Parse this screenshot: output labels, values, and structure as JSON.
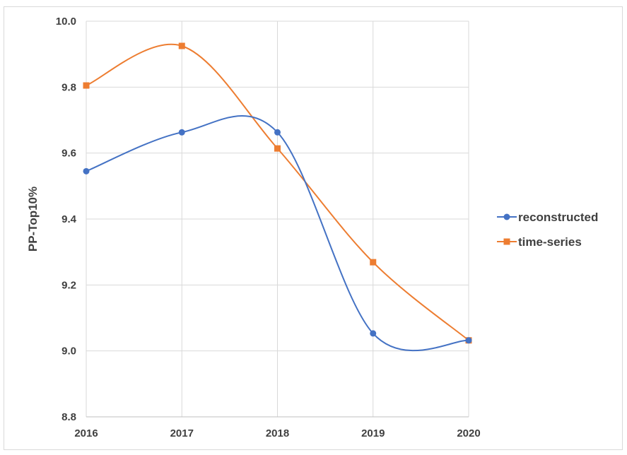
{
  "chart_data": {
    "type": "line",
    "title": "",
    "xlabel": "",
    "ylabel": "PP-Top10%",
    "x": [
      "2016",
      "2017",
      "2018",
      "2019",
      "2020"
    ],
    "ylim": [
      8.8,
      10.0
    ],
    "yticks": [
      "8.8",
      "9.0",
      "9.2",
      "9.4",
      "9.6",
      "9.8",
      "10.0"
    ],
    "grid": "on",
    "smooth": true,
    "legend_position": "right",
    "series": [
      {
        "name": "reconstructed",
        "values": [
          9.545,
          9.663,
          9.663,
          9.053,
          9.032
        ],
        "color": "#4472c4",
        "marker": "circle"
      },
      {
        "name": "time-series",
        "values": [
          9.805,
          9.925,
          9.614,
          9.269,
          9.032
        ],
        "color": "#ed7d31",
        "marker": "square"
      }
    ]
  }
}
